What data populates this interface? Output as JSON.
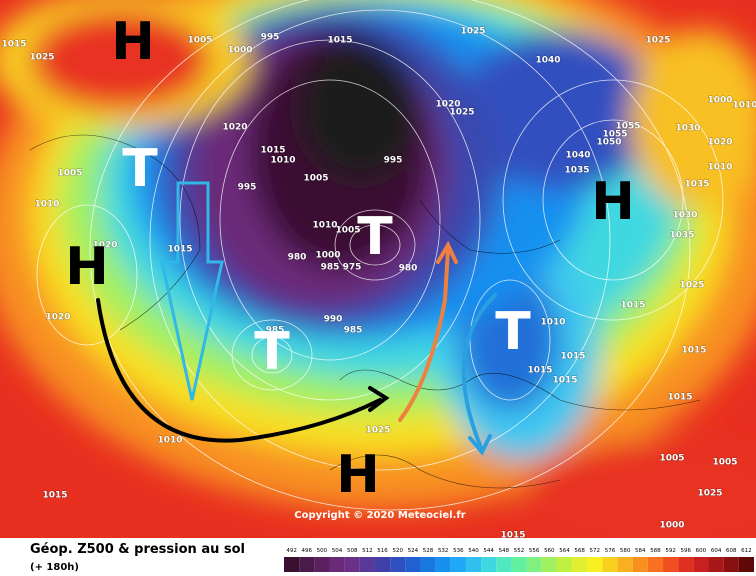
{
  "header": {
    "title": "Géop. Z500 & pression au sol",
    "subtitle": "(+ 180h)"
  },
  "copyright": "Copyright © 2020 Meteociel.fr",
  "pressure_centers": [
    {
      "label": "H",
      "color": "#000000"
    },
    {
      "label": "H",
      "color": "#000000"
    },
    {
      "label": "H",
      "color": "#000000"
    },
    {
      "label": "H",
      "color": "#000000"
    },
    {
      "label": "T",
      "color": "#ffffff"
    },
    {
      "label": "T",
      "color": "#ffffff"
    },
    {
      "label": "T",
      "color": "#ffffff"
    },
    {
      "label": "T",
      "color": "#ffffff"
    }
  ],
  "isobar_labels": [
    "1015",
    "1025",
    "1005",
    "1000",
    "995",
    "1015",
    "1025",
    "1040",
    "1025",
    "1020",
    "1025",
    "1020",
    "1015",
    "1010",
    "1005",
    "995",
    "995",
    "1005",
    "1010",
    "1020",
    "1015",
    "1010",
    "1005",
    "1000",
    "985",
    "975",
    "980",
    "980",
    "990",
    "985",
    "985",
    "1010",
    "1015",
    "1015",
    "1015",
    "1015",
    "1025",
    "1035",
    "1030",
    "1040",
    "1035",
    "1055",
    "1050",
    "1055",
    "1030",
    "1020",
    "1010",
    "1000",
    "1010",
    "1035",
    "1010",
    "1015",
    "1025",
    "1015",
    "1005",
    "1005",
    "1000",
    "1015",
    "1015",
    "1025",
    "1020"
  ],
  "scale": {
    "ticks": [
      492,
      496,
      500,
      504,
      508,
      512,
      516,
      520,
      524,
      528,
      532,
      536,
      540,
      544,
      548,
      552,
      556,
      560,
      564,
      568,
      572,
      576,
      580,
      584,
      588,
      592,
      596,
      600,
      604,
      608,
      612
    ],
    "colors": [
      "#3a1030",
      "#4a1a4a",
      "#5a2060",
      "#6a2a78",
      "#6a3088",
      "#583898",
      "#4040a8",
      "#3050c0",
      "#2060d0",
      "#1878e0",
      "#1890f0",
      "#20a8f8",
      "#30c0f0",
      "#40d8e0",
      "#50e8c0",
      "#60f0a0",
      "#80f080",
      "#a0f060",
      "#c0f040",
      "#e0f030",
      "#f8f020",
      "#f8d020",
      "#f8b020",
      "#f89020",
      "#f87020",
      "#f05020",
      "#e03020",
      "#c82020",
      "#a81818",
      "#881010",
      "#600808"
    ]
  }
}
